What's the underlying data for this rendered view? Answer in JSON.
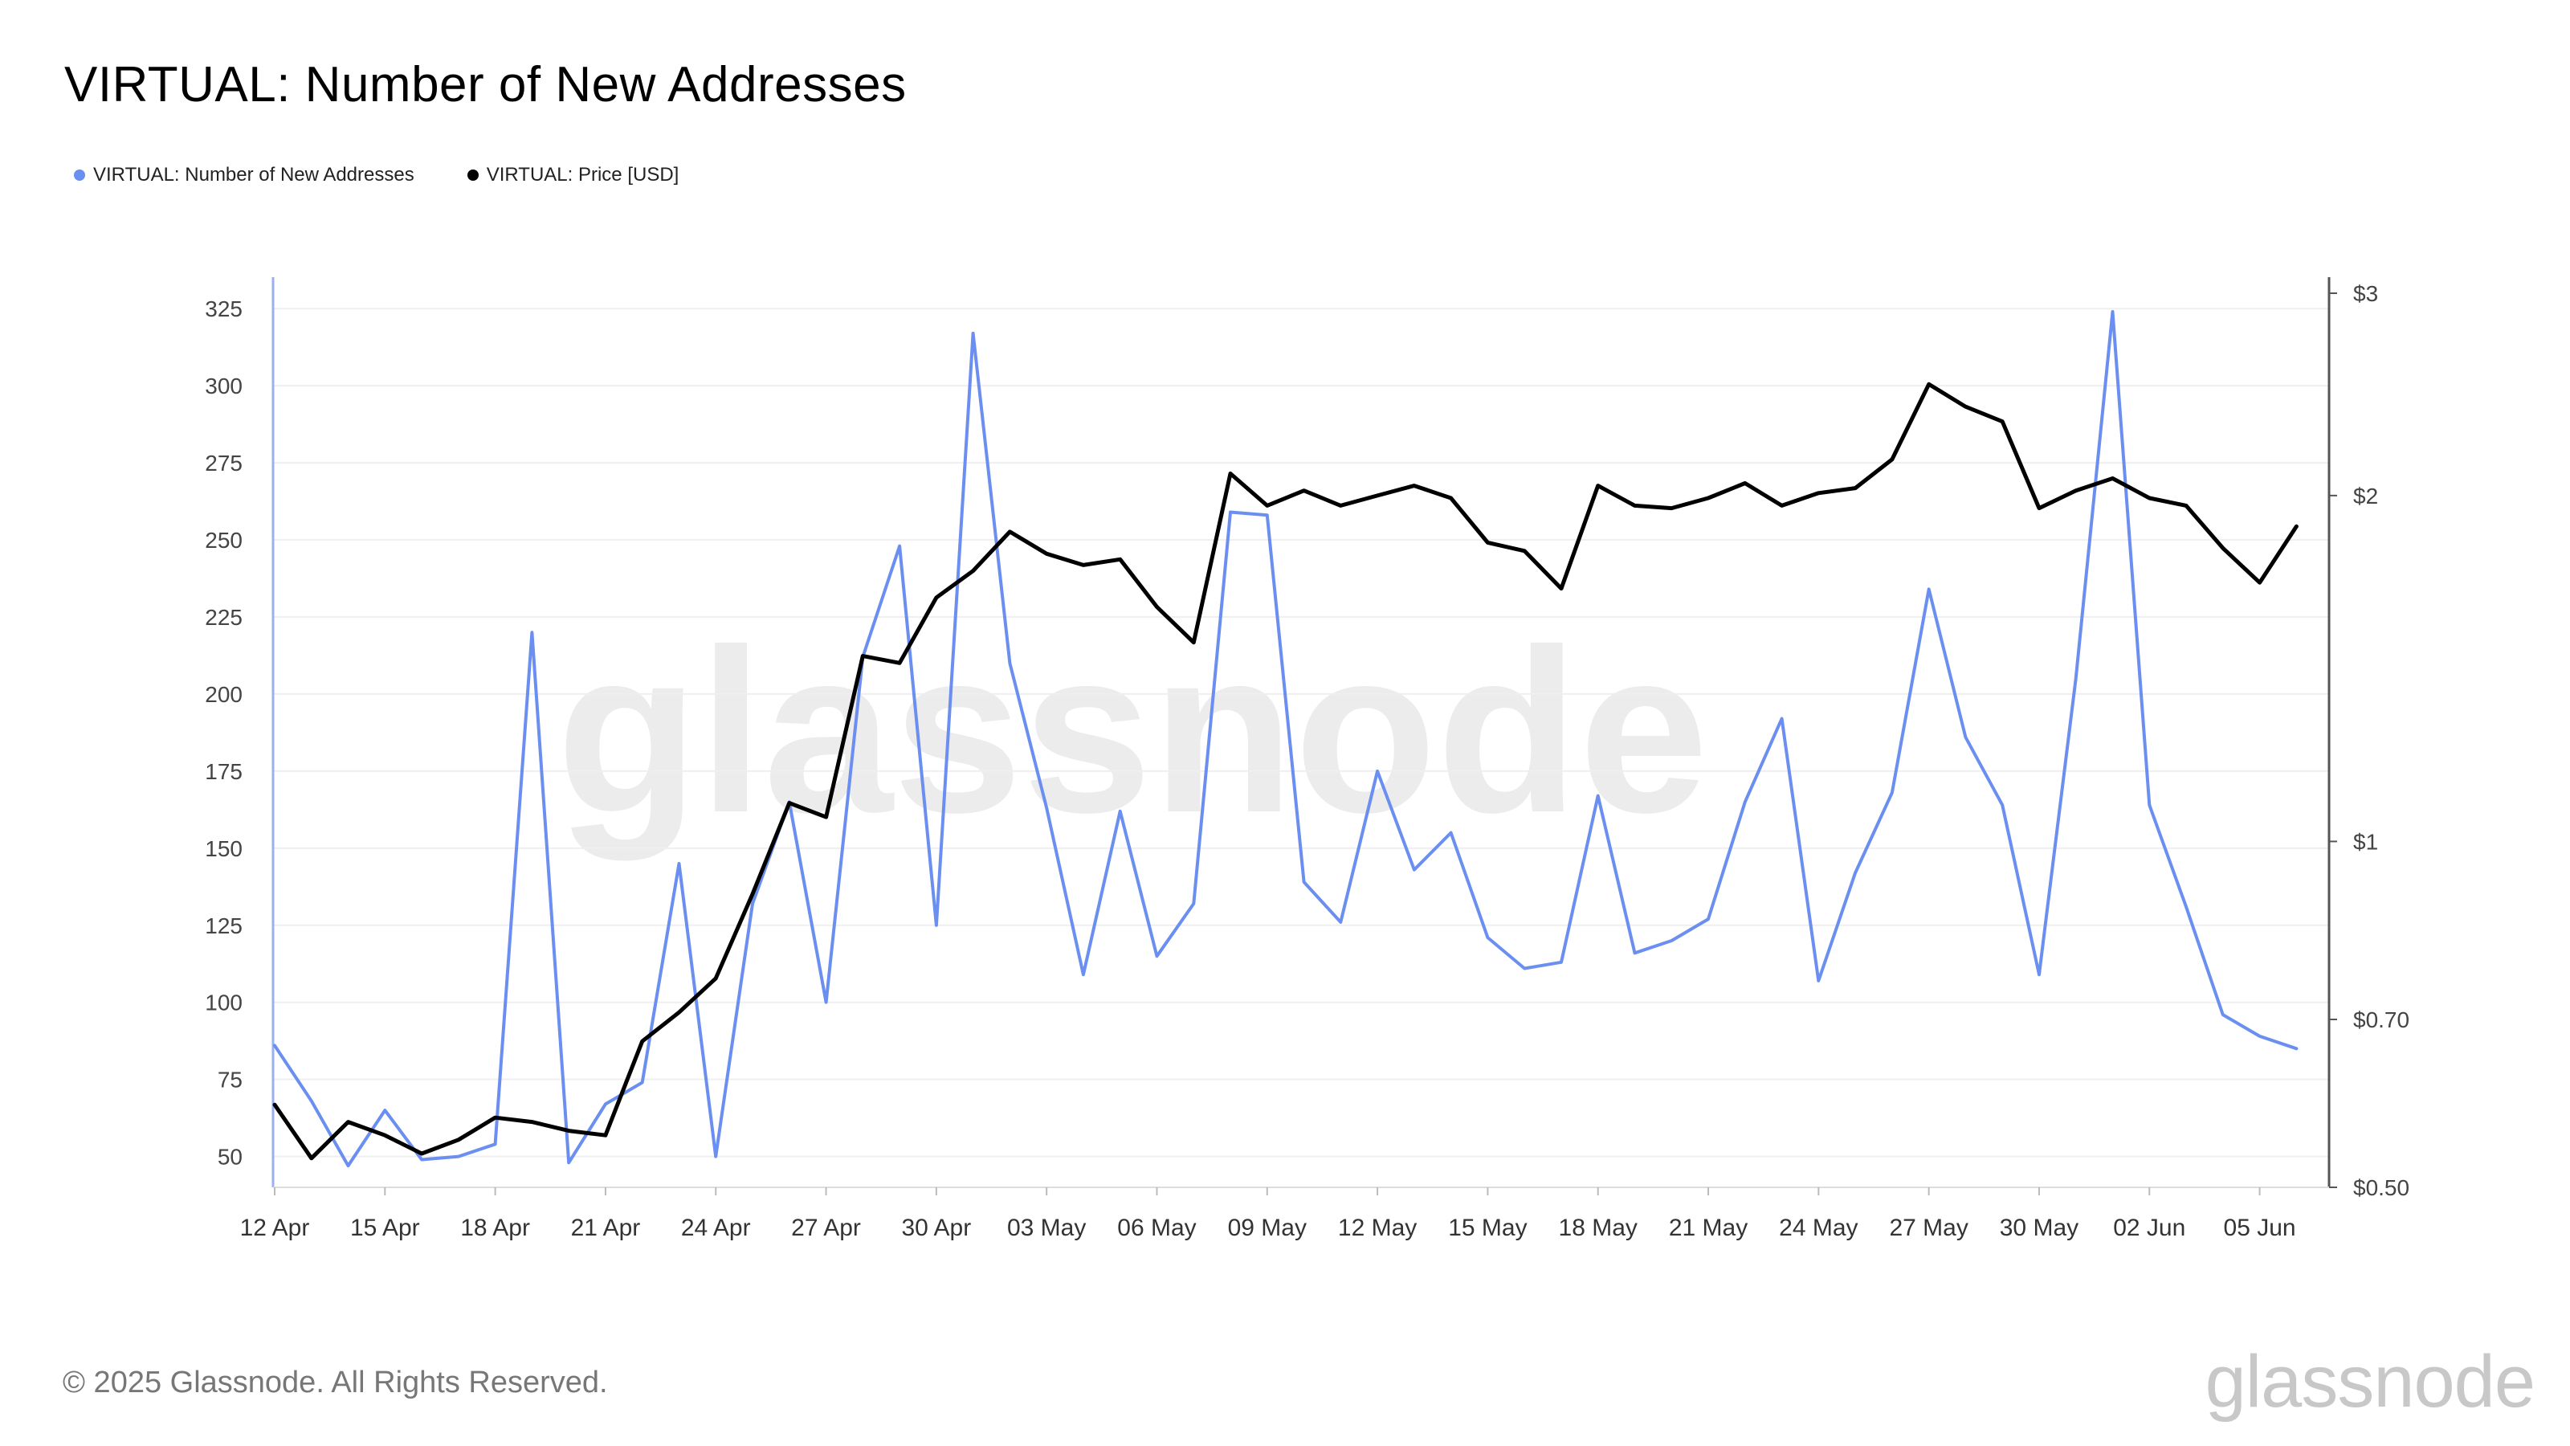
{
  "title": "VIRTUAL: Number of New Addresses",
  "legend": [
    {
      "label": "VIRTUAL: Number of New Addresses",
      "color": "#6b8ff0"
    },
    {
      "label": "VIRTUAL: Price [USD]",
      "color": "#000000"
    }
  ],
  "watermark": "glassnode",
  "footer": "© 2025 Glassnode. All Rights Reserved.",
  "brand": "glassnode",
  "chart_data": {
    "type": "line",
    "x": [
      "12 Apr",
      "13 Apr",
      "14 Apr",
      "15 Apr",
      "16 Apr",
      "17 Apr",
      "18 Apr",
      "19 Apr",
      "20 Apr",
      "21 Apr",
      "22 Apr",
      "23 Apr",
      "24 Apr",
      "25 Apr",
      "26 Apr",
      "27 Apr",
      "28 Apr",
      "29 Apr",
      "30 Apr",
      "01 May",
      "02 May",
      "03 May",
      "04 May",
      "05 May",
      "06 May",
      "07 May",
      "08 May",
      "09 May",
      "10 May",
      "11 May",
      "12 May",
      "13 May",
      "14 May",
      "15 May",
      "16 May",
      "17 May",
      "18 May",
      "19 May",
      "20 May",
      "21 May",
      "22 May",
      "23 May",
      "24 May",
      "25 May",
      "26 May",
      "27 May",
      "28 May",
      "29 May",
      "30 May",
      "31 May",
      "01 Jun",
      "02 Jun",
      "03 Jun",
      "04 Jun",
      "05 Jun",
      "06 Jun"
    ],
    "x_ticks": [
      "12 Apr",
      "15 Apr",
      "18 Apr",
      "21 Apr",
      "24 Apr",
      "27 Apr",
      "30 Apr",
      "03 May",
      "06 May",
      "09 May",
      "12 May",
      "15 May",
      "18 May",
      "21 May",
      "24 May",
      "27 May",
      "30 May",
      "02 Jun",
      "05 Jun"
    ],
    "series": [
      {
        "name": "VIRTUAL: Number of New Addresses",
        "axis": "left",
        "color": "#6b8ff0",
        "values": [
          86,
          68,
          47,
          65,
          49,
          50,
          54,
          220,
          48,
          67,
          74,
          145,
          50,
          132,
          165,
          100,
          212,
          248,
          125,
          317,
          210,
          163,
          109,
          162,
          115,
          132,
          259,
          258,
          139,
          126,
          175,
          143,
          155,
          121,
          111,
          113,
          167,
          116,
          120,
          127,
          165,
          192,
          107,
          142,
          168,
          234,
          186,
          164,
          109,
          205,
          324,
          164,
          131,
          96,
          89,
          85
        ]
      },
      {
        "name": "VIRTUAL: Price [USD]",
        "axis": "right",
        "color": "#000000",
        "values": [
          0.59,
          0.53,
          0.57,
          0.555,
          0.535,
          0.55,
          0.575,
          0.57,
          0.56,
          0.555,
          0.67,
          0.71,
          0.76,
          0.9,
          1.08,
          1.05,
          1.45,
          1.43,
          1.63,
          1.72,
          1.86,
          1.78,
          1.74,
          1.76,
          1.6,
          1.49,
          2.09,
          1.96,
          2.02,
          1.96,
          2.0,
          2.04,
          1.99,
          1.82,
          1.79,
          1.66,
          2.04,
          1.96,
          1.95,
          1.99,
          2.05,
          1.96,
          2.01,
          2.03,
          2.15,
          2.5,
          2.39,
          2.32,
          1.95,
          2.02,
          2.07,
          1.99,
          1.96,
          1.8,
          1.68,
          1.88
        ]
      }
    ],
    "y_left": {
      "ticks": [
        50,
        75,
        100,
        125,
        150,
        175,
        200,
        225,
        250,
        275,
        300,
        325
      ],
      "range": [
        40,
        330
      ]
    },
    "y_right": {
      "ticks": [
        0.5,
        0.7,
        1,
        2,
        3
      ],
      "tick_labels": [
        "$0.50",
        "$0.70",
        "$1",
        "$2",
        "$3"
      ],
      "scale": "log",
      "range": [
        0.5,
        3
      ]
    },
    "grid": true,
    "legend_position": "top-left"
  }
}
